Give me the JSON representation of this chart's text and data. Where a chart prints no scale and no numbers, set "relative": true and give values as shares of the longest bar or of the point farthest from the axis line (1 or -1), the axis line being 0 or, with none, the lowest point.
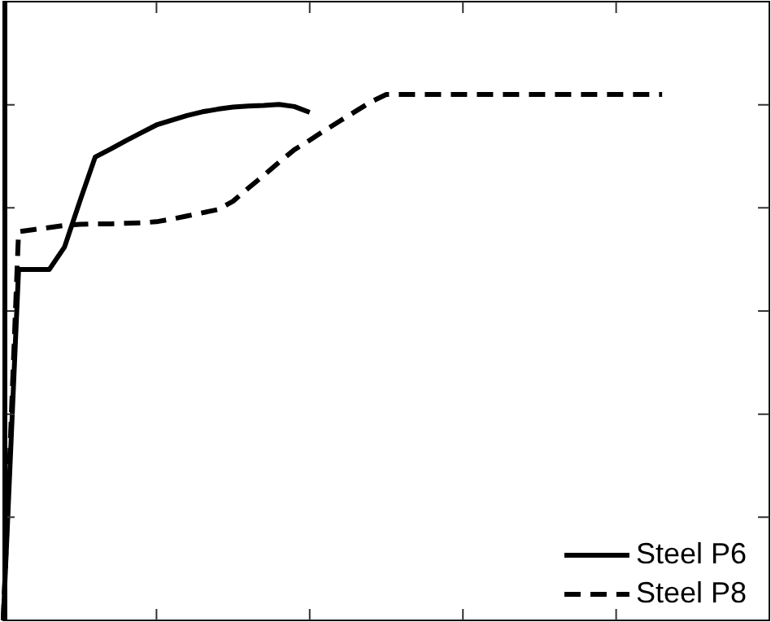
{
  "chart_data": {
    "type": "line",
    "relative": true,
    "tick_labels": false,
    "legend": "bottom right",
    "categories": [
      null,
      null,
      null,
      null,
      null,
      null,
      null,
      null,
      null,
      null,
      null,
      null,
      null,
      null,
      null,
      null,
      null,
      null,
      null,
      null,
      null,
      null,
      null,
      null,
      null,
      null,
      null,
      null,
      null,
      null,
      null,
      null,
      null,
      null,
      null,
      null,
      null,
      null,
      null,
      null,
      null,
      null,
      null,
      null,
      null,
      null,
      null,
      null,
      null,
      null,
      null
    ],
    "series": [
      {
        "name": "Steel P6",
        "color": "#000000",
        "line_style": "solid",
        "values": [
          0,
          0.667,
          0.667,
          0.667,
          0.71,
          0.797,
          0.881,
          0.896,
          0.912,
          0.927,
          0.942,
          0.951,
          0.96,
          0.967,
          0.972,
          0.976,
          0.978,
          0.979,
          0.981,
          0.977,
          0.966,
          null,
          null,
          null,
          null,
          null,
          null,
          null,
          null,
          null,
          null,
          null,
          null,
          null,
          null,
          null,
          null,
          null,
          null,
          null,
          null,
          null,
          null,
          null,
          null,
          null,
          null,
          null,
          null,
          null,
          null
        ]
      },
      {
        "name": "Steel P8",
        "color": "#000000",
        "line_style": "dashed",
        "values": [
          0,
          0.739,
          0.743,
          0.747,
          0.751,
          0.753,
          0.754,
          0.754,
          0.755,
          0.756,
          0.758,
          0.763,
          0.769,
          0.775,
          0.781,
          0.797,
          0.822,
          0.846,
          0.871,
          0.895,
          0.913,
          0.932,
          0.95,
          0.968,
          0.986,
          1,
          1,
          1,
          1,
          1,
          1,
          1,
          1,
          1,
          1,
          1,
          1,
          1,
          1,
          1,
          1,
          1,
          1,
          1,
          null,
          null,
          null,
          null,
          null,
          null,
          null
        ]
      }
    ]
  }
}
